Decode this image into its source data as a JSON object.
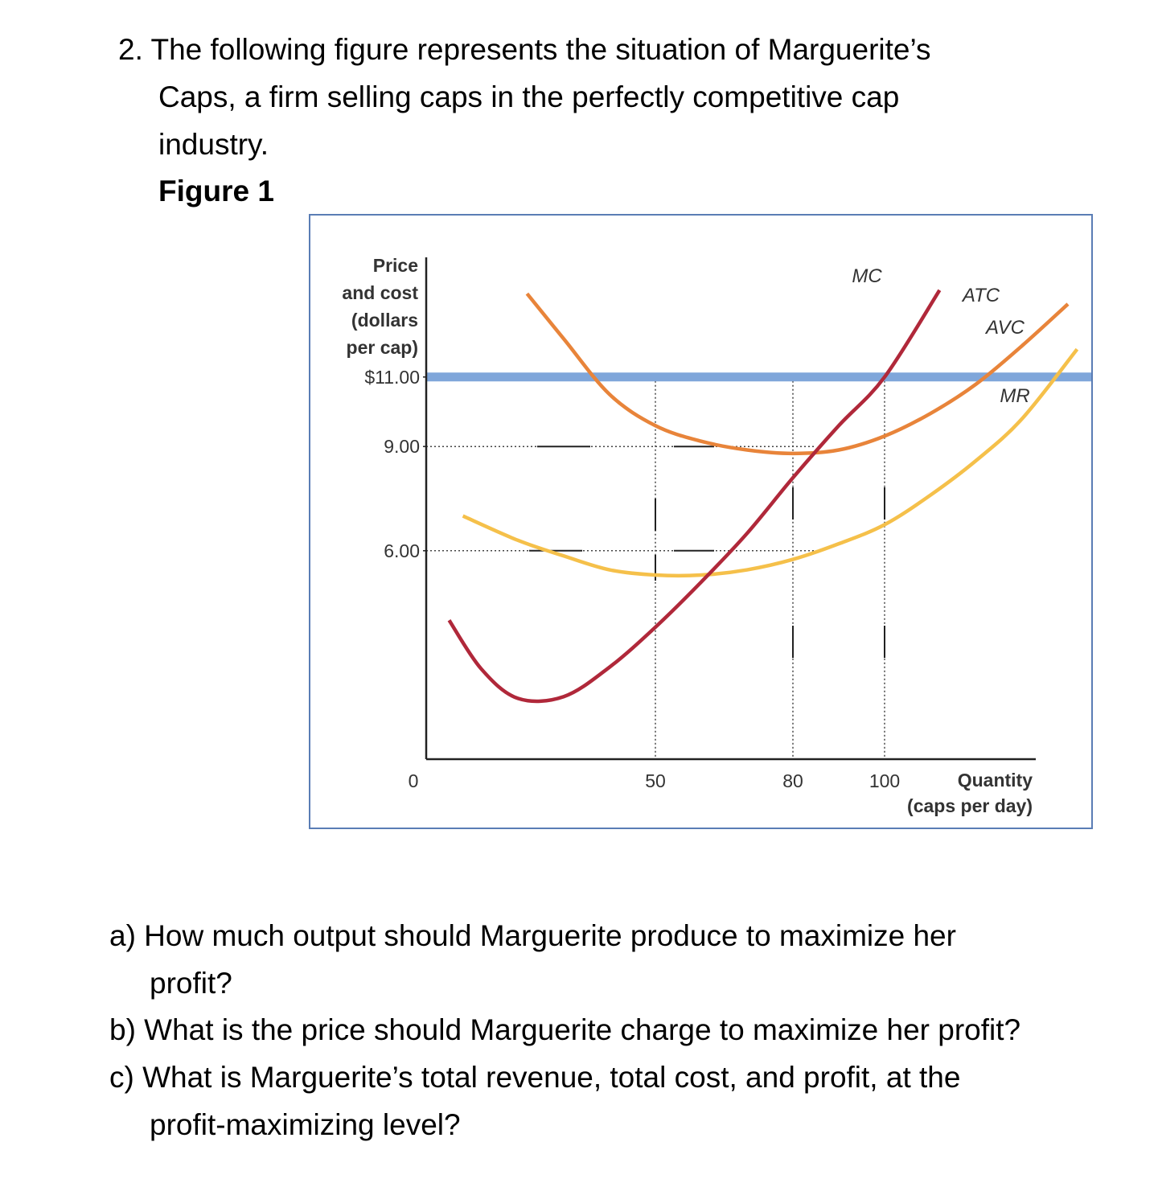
{
  "question": {
    "lines": [
      "2. The following figure represents the situation of Marguerite’s",
      "Caps, a firm selling caps in the perfectly competitive cap",
      "industry."
    ],
    "figure_label": "Figure 1"
  },
  "chart_data": {
    "type": "line",
    "ylabel": [
      "Price",
      "and cost",
      "(dollars",
      "per cap)"
    ],
    "xlabel": [
      "Quantity",
      "(caps per day)"
    ],
    "origin_label": "0",
    "y_ticks": [
      {
        "value": 11,
        "label": "$11.00"
      },
      {
        "value": 9,
        "label": "9.00"
      },
      {
        "value": 6,
        "label": "6.00"
      }
    ],
    "x_ticks": [
      {
        "value": 50,
        "label": "50"
      },
      {
        "value": 80,
        "label": "80"
      },
      {
        "value": 100,
        "label": "100"
      }
    ],
    "series": [
      {
        "name": "MC",
        "color": "#b0283a",
        "x": [
          5,
          12,
          20,
          30,
          40,
          50,
          60,
          70,
          80,
          90,
          100,
          112
        ],
        "y": [
          4.0,
          2.6,
          1.75,
          1.8,
          2.65,
          3.8,
          5.1,
          6.5,
          8.1,
          9.6,
          11.0,
          13.5
        ]
      },
      {
        "name": "ATC",
        "color": "#e8843a",
        "x": [
          22,
          30,
          40,
          50,
          60,
          70,
          80,
          90,
          100,
          110,
          120,
          130,
          140
        ],
        "y": [
          13.4,
          12.1,
          10.5,
          9.6,
          9.15,
          8.9,
          8.8,
          8.9,
          9.3,
          9.95,
          10.8,
          11.9,
          13.1
        ]
      },
      {
        "name": "AVC",
        "color": "#f5c04a",
        "x": [
          8,
          20,
          30,
          40,
          50,
          60,
          70,
          80,
          90,
          100,
          110,
          120,
          130,
          142
        ],
        "y": [
          7.0,
          6.3,
          5.85,
          5.45,
          5.3,
          5.3,
          5.45,
          5.75,
          6.2,
          6.75,
          7.6,
          8.6,
          9.8,
          11.8
        ]
      },
      {
        "name": "MR",
        "color": "#7fa6da",
        "x": [
          0,
          146
        ],
        "y": [
          11,
          11
        ]
      }
    ],
    "xlim": [
      0,
      160
    ],
    "ylim": [
      0,
      14
    ]
  },
  "questions": [
    {
      "lines": [
        "a) How much output should Marguerite produce to maximize her",
        "profit?"
      ]
    },
    {
      "lines": [
        "b) What is the price should Marguerite charge to maximize her profit?"
      ]
    },
    {
      "lines": [
        "c) What is Marguerite’s total revenue, total cost, and profit, at the",
        "profit-maximizing level?"
      ]
    }
  ]
}
